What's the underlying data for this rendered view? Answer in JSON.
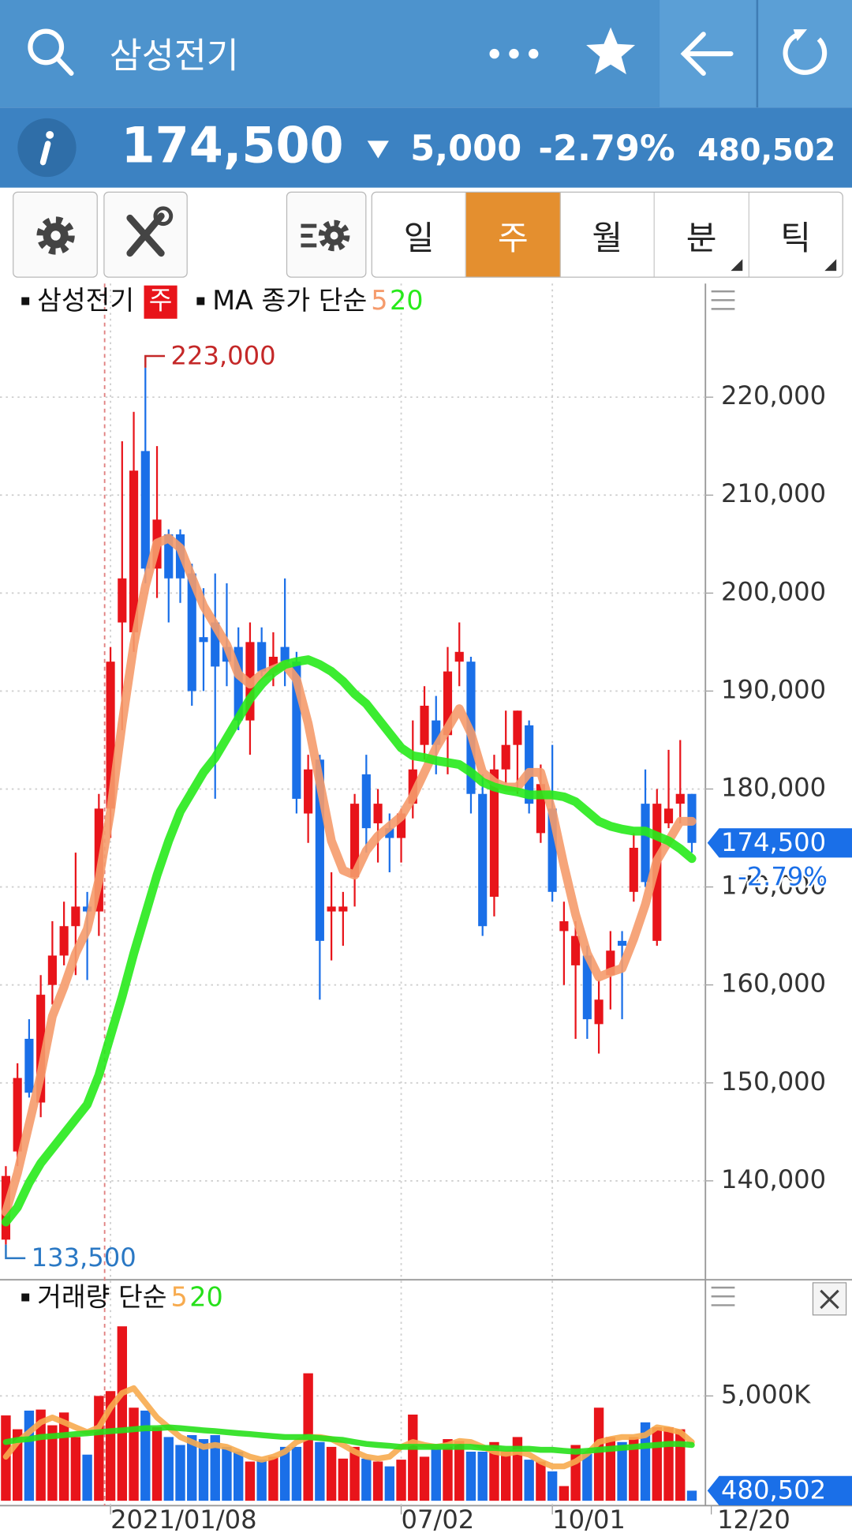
{
  "header": {
    "title": "삼성전기"
  },
  "quote": {
    "price": "174,500",
    "change": "5,000",
    "change_rate": "-2.79%",
    "volume": "480,502"
  },
  "tabs": [
    "일",
    "주",
    "월",
    "분",
    "틱"
  ],
  "active_tab": 1,
  "x_end_label": "12/20",
  "chart_data": [
    {
      "type": "candlestick",
      "name": "삼성전기",
      "period": "주",
      "legend_title": "MA 종가 단순",
      "up_color": "#e8141a",
      "down_color": "#1a6fe8",
      "categories": [
        null,
        null,
        null,
        null,
        null,
        null,
        null,
        null,
        null,
        "2021/01/08",
        null,
        null,
        null,
        null,
        null,
        null,
        null,
        null,
        null,
        null,
        null,
        null,
        null,
        null,
        null,
        null,
        null,
        null,
        null,
        null,
        null,
        null,
        null,
        null,
        "07/02",
        null,
        null,
        null,
        null,
        null,
        null,
        null,
        null,
        null,
        null,
        null,
        null,
        "10/01",
        null,
        null,
        null,
        null,
        null,
        null,
        null,
        null,
        null,
        null,
        null,
        null
      ],
      "open": [
        134000,
        143000,
        154500,
        148000,
        160000,
        163000,
        166000,
        168000,
        167500,
        178000,
        197000,
        196000,
        214500,
        202500,
        206000,
        206000,
        202000,
        195500,
        197000,
        194500,
        194500,
        187000,
        195000,
        192000,
        194500,
        193000,
        177500,
        183000,
        167500,
        167500,
        171000,
        181500,
        176500,
        176000,
        175000,
        178500,
        184500,
        187000,
        185500,
        193000,
        193000,
        179500,
        169000,
        182000,
        184500,
        186500,
        175500,
        178000,
        165500,
        162000,
        163000,
        156000,
        161000,
        164500,
        169500,
        178500,
        164500,
        176500,
        178500,
        179500
      ],
      "high": [
        141500,
        152000,
        156500,
        161000,
        166500,
        168500,
        173500,
        169500,
        179500,
        194500,
        215500,
        218500,
        223000,
        215000,
        206500,
        206500,
        203000,
        200500,
        202000,
        201000,
        196500,
        197000,
        196500,
        196000,
        201500,
        194000,
        183500,
        183500,
        171500,
        169500,
        179500,
        183500,
        180000,
        177500,
        178000,
        187000,
        190500,
        189500,
        194500,
        197000,
        193500,
        181500,
        183500,
        188000,
        188000,
        187000,
        182500,
        184500,
        168500,
        166500,
        164000,
        160500,
        165500,
        165500,
        175500,
        182000,
        180000,
        184000,
        185000,
        179500
      ],
      "low": [
        133500,
        141500,
        148500,
        146500,
        158000,
        162000,
        161000,
        160500,
        165000,
        175000,
        186000,
        194000,
        201000,
        199500,
        197000,
        199000,
        188500,
        190000,
        179000,
        190500,
        186000,
        183500,
        191500,
        190500,
        190500,
        177500,
        174500,
        158500,
        162500,
        164000,
        168000,
        173500,
        172500,
        171500,
        172500,
        177000,
        183000,
        181500,
        181500,
        190500,
        177500,
        165000,
        167000,
        180500,
        179500,
        177500,
        174500,
        168500,
        160000,
        154500,
        154500,
        153000,
        157500,
        156500,
        168500,
        170000,
        164000,
        176000,
        176500,
        173500
      ],
      "close": [
        140500,
        150500,
        149000,
        159000,
        163000,
        166000,
        168000,
        167500,
        178000,
        193000,
        201500,
        212500,
        202500,
        207500,
        201500,
        201500,
        190000,
        195000,
        192500,
        193000,
        187000,
        195000,
        192000,
        193500,
        193000,
        179000,
        182000,
        164500,
        168000,
        168000,
        178500,
        176000,
        178500,
        175000,
        177500,
        182000,
        188500,
        184500,
        192000,
        194000,
        179500,
        166000,
        182000,
        184500,
        188000,
        178500,
        180500,
        169500,
        166500,
        165000,
        156500,
        158500,
        163500,
        164000,
        174000,
        170500,
        178500,
        178000,
        179500,
        174500
      ],
      "series": [
        {
          "name": "5",
          "color": "#f59b6c",
          "values": [
            136800,
            140800,
            145800,
            150800,
            156800,
            159800,
            163200,
            165700,
            170700,
            177700,
            186700,
            194700,
            200700,
            205100,
            205600,
            204600,
            201600,
            198700,
            196700,
            194700,
            191700,
            190700,
            191700,
            192200,
            192700,
            191200,
            186700,
            180700,
            174700,
            171700,
            171200,
            173700,
            175200,
            176200,
            177200,
            179200,
            181700,
            184200,
            186200,
            188200,
            185700,
            181700,
            180700,
            180200,
            180200,
            181700,
            181700,
            177700,
            172200,
            167200,
            163200,
            160800,
            161300,
            161700,
            164700,
            168200,
            172700,
            174700,
            176700,
            176700
          ]
        },
        {
          "name": "20",
          "color": "#27ea1b",
          "values": [
            135800,
            137300,
            139800,
            141800,
            143300,
            144800,
            146300,
            147800,
            150800,
            154800,
            158800,
            163200,
            167200,
            171200,
            174700,
            177700,
            179700,
            181700,
            183200,
            185200,
            187200,
            189200,
            190700,
            191900,
            192700,
            193000,
            193200,
            192700,
            192000,
            191000,
            189700,
            188700,
            187200,
            185700,
            184200,
            183400,
            183200,
            182900,
            182700,
            182500,
            181700,
            180700,
            180200,
            179900,
            179700,
            179400,
            179400,
            179400,
            179200,
            178700,
            177700,
            176700,
            176200,
            175900,
            175700,
            175700,
            175200,
            174700,
            173900,
            172900
          ]
        }
      ],
      "ylim": [
        130000,
        231400
      ],
      "yticks": [
        {
          "value": 140000,
          "label": "140,000"
        },
        {
          "value": 150000,
          "label": "150,000"
        },
        {
          "value": 160000,
          "label": "160,000"
        },
        {
          "value": 170000,
          "label": "170,000"
        },
        {
          "value": 180000,
          "label": "180,000"
        },
        {
          "value": 190000,
          "label": "190,000"
        },
        {
          "value": 200000,
          "label": "200,000"
        },
        {
          "value": 210000,
          "label": "210,000"
        },
        {
          "value": 220000,
          "label": "220,000"
        }
      ],
      "grid": true,
      "annotations": [
        {
          "value": 223000,
          "label": "223,000",
          "color": "#c42828"
        },
        {
          "value": 133500,
          "label": "133,500",
          "color": "#2a78c4"
        }
      ],
      "last": {
        "value": 174500,
        "label": "174,500",
        "change": "-2.79%"
      }
    },
    {
      "type": "bar",
      "legend_title": "거래량 단순",
      "values": [
        4070,
        3410,
        4300,
        4350,
        3600,
        4210,
        3040,
        2200,
        5000,
        5230,
        8320,
        4440,
        4300,
        3510,
        3040,
        2660,
        3130,
        2940,
        3130,
        2570,
        2340,
        1870,
        1960,
        2100,
        2570,
        2570,
        6080,
        2800,
        2570,
        2010,
        2570,
        2010,
        1870,
        1640,
        1960,
        4110,
        2100,
        2570,
        2940,
        2850,
        2340,
        2340,
        2800,
        2340,
        3040,
        1960,
        1870,
        1400,
        700,
        2660,
        2240,
        4440,
        3040,
        2800,
        3040,
        3740,
        3510,
        3510,
        3410,
        480.502
      ],
      "series": [
        {
          "name": "5",
          "color": "#f7ab4f",
          "values": [
            2100,
            2800,
            3270,
            3740,
            3970,
            3740,
            3500,
            3270,
            3500,
            4440,
            5140,
            5370,
            4670,
            3970,
            3500,
            3040,
            2800,
            2570,
            2660,
            2570,
            2340,
            2100,
            1960,
            2100,
            2340,
            2800,
            3040,
            3040,
            2940,
            2660,
            2340,
            2100,
            2010,
            2100,
            2570,
            2800,
            2660,
            2570,
            2660,
            2850,
            2800,
            2570,
            2340,
            2240,
            2340,
            2200,
            1870,
            1640,
            1640,
            1870,
            2240,
            2800,
            2940,
            3040,
            3040,
            3130,
            3500,
            3410,
            3270,
            2800
          ]
        },
        {
          "name": "20",
          "color": "#27e01b",
          "values": [
            2800,
            2900,
            2940,
            3040,
            3080,
            3130,
            3180,
            3220,
            3270,
            3320,
            3360,
            3410,
            3460,
            3460,
            3500,
            3460,
            3410,
            3360,
            3320,
            3270,
            3220,
            3180,
            3130,
            3080,
            3040,
            3040,
            3040,
            2990,
            2940,
            2900,
            2800,
            2710,
            2660,
            2620,
            2570,
            2570,
            2570,
            2570,
            2570,
            2570,
            2570,
            2520,
            2520,
            2480,
            2480,
            2480,
            2430,
            2430,
            2380,
            2340,
            2380,
            2430,
            2480,
            2520,
            2570,
            2620,
            2660,
            2710,
            2710,
            2660
          ]
        }
      ],
      "ylim": [
        0,
        10400
      ],
      "yticks": [
        {
          "value": 5000,
          "label": "5,000K"
        }
      ],
      "grid": true,
      "last": {
        "value": 480.502,
        "label": "480,502"
      }
    }
  ]
}
